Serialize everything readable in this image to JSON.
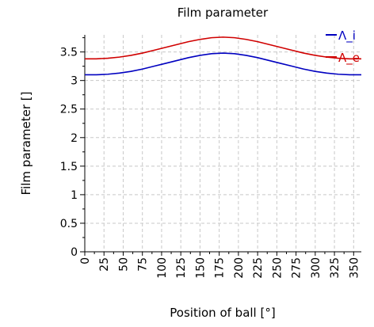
{
  "chart_data": {
    "type": "line",
    "title": "Film parameter",
    "xlabel": "Position of ball [°]",
    "ylabel": "Film parameter []",
    "xlim": [
      0,
      360
    ],
    "ylim": [
      0,
      3.8
    ],
    "x_ticks": [
      0,
      25,
      50,
      75,
      100,
      125,
      150,
      175,
      200,
      225,
      250,
      275,
      300,
      325,
      350
    ],
    "y_ticks": [
      0,
      0.5,
      1,
      1.5,
      2,
      2.5,
      3,
      3.5
    ],
    "y_tick_labels": [
      "0",
      "0.5",
      "1",
      "1.5",
      "2",
      "2.5",
      "3",
      "3.5"
    ],
    "grid": true,
    "legend_position": "top-right",
    "x": [
      0,
      15,
      30,
      45,
      60,
      75,
      90,
      105,
      120,
      135,
      150,
      165,
      180,
      195,
      210,
      225,
      240,
      255,
      270,
      285,
      300,
      315,
      330,
      345,
      360
    ],
    "series": [
      {
        "name": "Λ_i",
        "color": "#0000c0",
        "values": [
          3.1,
          3.1,
          3.11,
          3.13,
          3.16,
          3.2,
          3.25,
          3.3,
          3.35,
          3.4,
          3.44,
          3.47,
          3.48,
          3.47,
          3.44,
          3.4,
          3.35,
          3.3,
          3.25,
          3.2,
          3.16,
          3.13,
          3.11,
          3.1,
          3.1
        ]
      },
      {
        "name": "Λ_e",
        "color": "#d00000",
        "values": [
          3.38,
          3.38,
          3.39,
          3.41,
          3.44,
          3.48,
          3.53,
          3.58,
          3.63,
          3.68,
          3.72,
          3.75,
          3.76,
          3.75,
          3.72,
          3.68,
          3.63,
          3.58,
          3.53,
          3.48,
          3.44,
          3.41,
          3.39,
          3.38,
          3.38
        ]
      }
    ]
  }
}
